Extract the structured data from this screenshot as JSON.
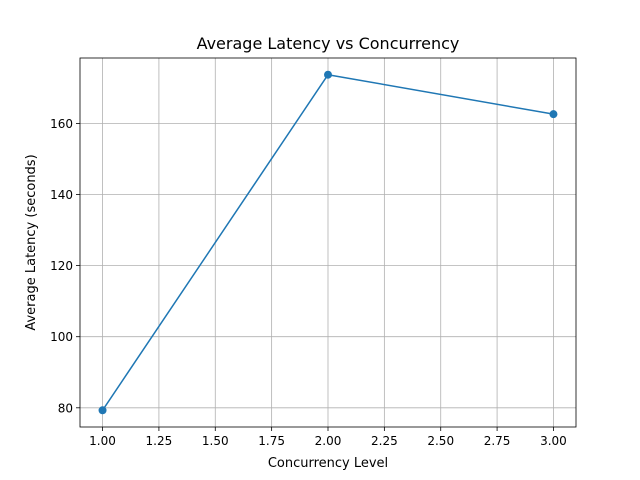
{
  "chart_data": {
    "type": "line",
    "title": "Average Latency vs Concurrency",
    "xlabel": "Concurrency Level",
    "ylabel": "Average Latency (seconds)",
    "x": [
      1.0,
      2.0,
      3.0
    ],
    "series": [
      {
        "values": [
          79.3,
          173.7,
          162.6
        ],
        "color": "#1f77b4",
        "marker": "circle"
      }
    ],
    "xlim": [
      0.9,
      3.1
    ],
    "ylim": [
      74.6,
      178.4
    ],
    "xticks": [
      "1.00",
      "1.25",
      "1.50",
      "1.75",
      "2.00",
      "2.25",
      "2.50",
      "2.75",
      "3.00"
    ],
    "yticks": [
      "80",
      "100",
      "120",
      "140",
      "160"
    ],
    "grid": true,
    "legend": "none"
  }
}
